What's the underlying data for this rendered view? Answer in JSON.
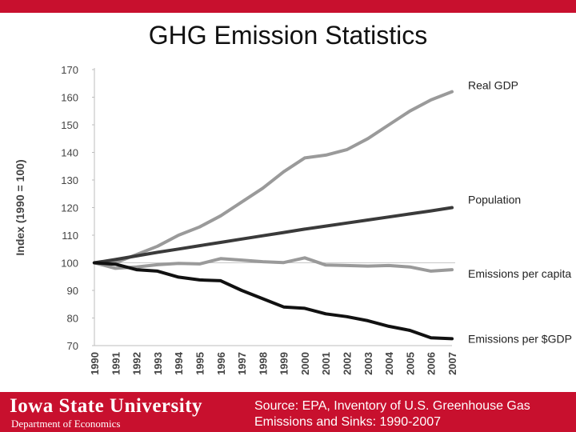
{
  "slide": {
    "title": "GHG Emission Statistics",
    "footer": {
      "university": "Iowa State University",
      "department": "Department of Economics",
      "source_line1": "Source: EPA, Inventory of U.S. Greenhouse Gas",
      "source_line2": "Emissions and Sinks: 1990-2007"
    },
    "colors": {
      "brand": "#c8102e"
    }
  },
  "chart_data": {
    "type": "line",
    "title": "",
    "xlabel": "",
    "ylabel": "Index (1990 = 100)",
    "ylim": [
      70,
      170
    ],
    "yticks": [
      70,
      80,
      90,
      100,
      110,
      120,
      130,
      140,
      150,
      160,
      170
    ],
    "categories": [
      "1990",
      "1991",
      "1992",
      "1993",
      "1994",
      "1995",
      "1996",
      "1997",
      "1998",
      "1999",
      "2000",
      "2001",
      "2002",
      "2003",
      "2004",
      "2005",
      "2006",
      "2007"
    ],
    "reference_line": 100,
    "series": [
      {
        "name": "Real GDP",
        "color": "#9a9a9a",
        "values": [
          100,
          100,
          103,
          106,
          110,
          113,
          117,
          122,
          127,
          133,
          138,
          139,
          141,
          145,
          150,
          155,
          159,
          162
        ]
      },
      {
        "name": "Population",
        "color": "#3a3a3a",
        "values": [
          100,
          101.2,
          102.5,
          103.8,
          105,
          106.2,
          107.4,
          108.6,
          109.8,
          111,
          112.2,
          113.3,
          114.4,
          115.5,
          116.6,
          117.7,
          118.8,
          120
        ]
      },
      {
        "name": "Emissions per capita",
        "color": "#9a9a9a",
        "values": [
          100,
          98,
          98.5,
          99.3,
          99.8,
          99.6,
          101.5,
          101,
          100.4,
          100.1,
          101.8,
          99.2,
          99,
          98.8,
          99,
          98.5,
          97,
          97.5
        ]
      },
      {
        "name": "Emissions per $GDP",
        "color": "#111111",
        "values": [
          100,
          99.5,
          97.5,
          97,
          94.8,
          93.8,
          93.5,
          90,
          87,
          84,
          83.5,
          81.5,
          80.5,
          79,
          77,
          75.5,
          72.8,
          72.5
        ]
      }
    ]
  }
}
